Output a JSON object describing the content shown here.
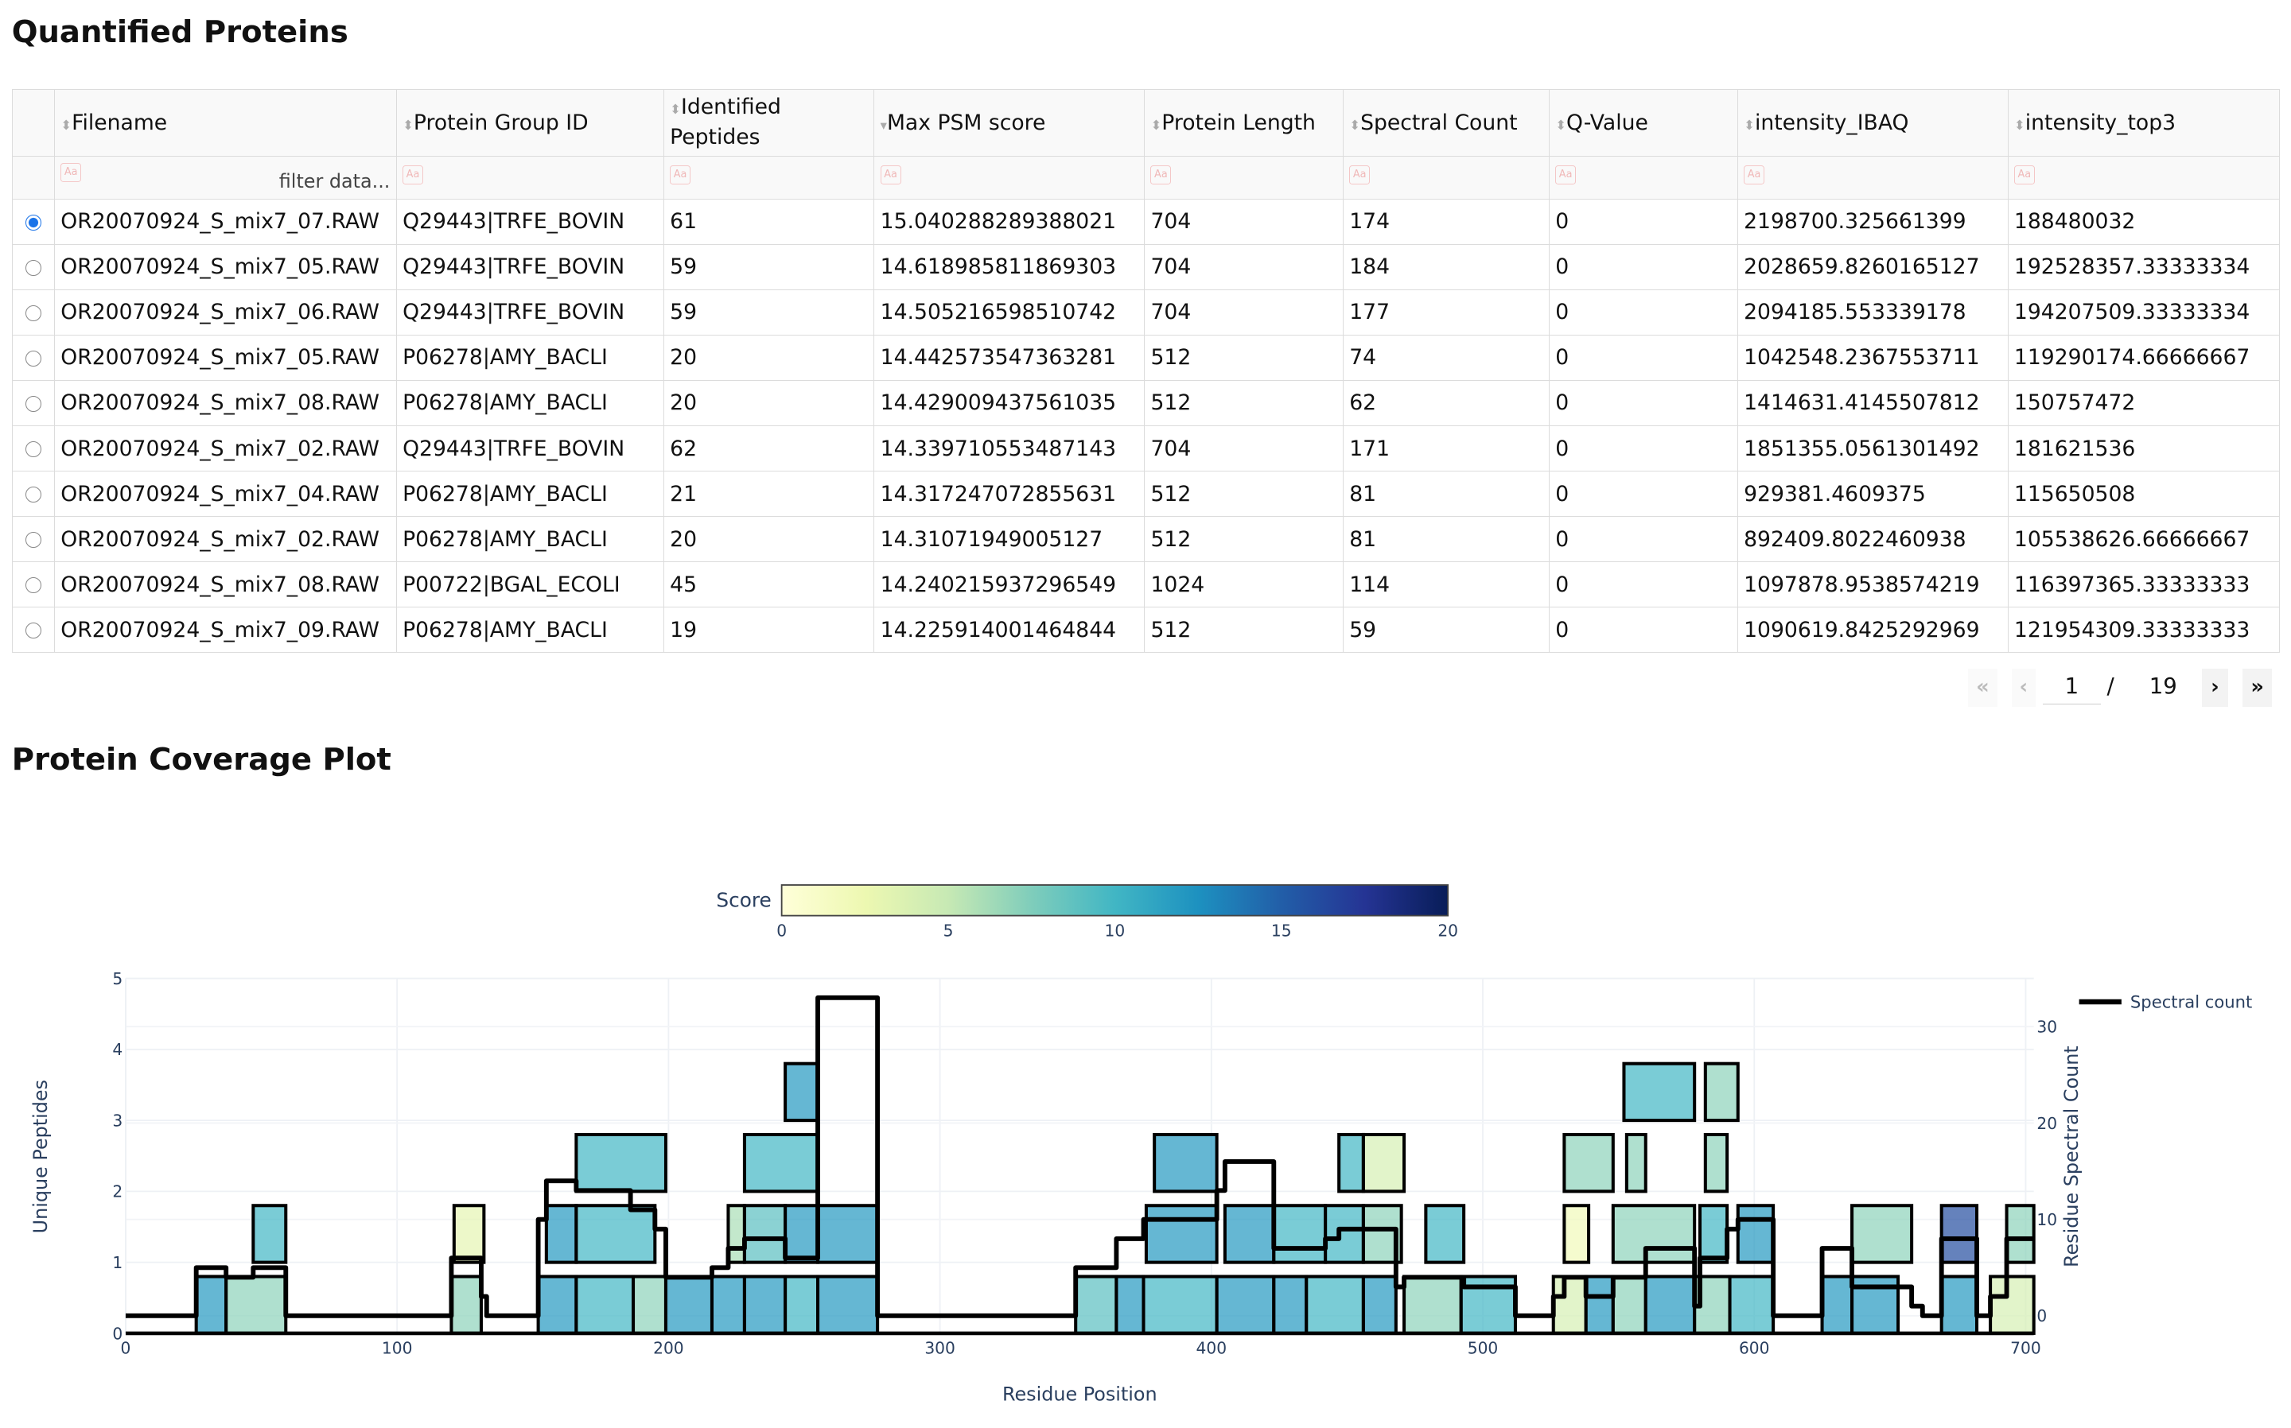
{
  "table_title": "Quantified Proteins",
  "columns": [
    "Filename",
    "Protein Group ID",
    "Identified Peptides",
    "Max PSM score",
    "Protein Length",
    "Spectral Count",
    "Q-Value",
    "intensity_IBAQ",
    "intensity_top3"
  ],
  "filter_placeholder": "filter data...",
  "filter_icon": "Aa",
  "rows": [
    [
      "OR20070924_S_mix7_07.RAW",
      "Q29443|TRFE_BOVIN",
      "61",
      "15.040288289388021",
      "704",
      "174",
      "0",
      "2198700.325661399",
      "188480032"
    ],
    [
      "OR20070924_S_mix7_05.RAW",
      "Q29443|TRFE_BOVIN",
      "59",
      "14.618985811869303",
      "704",
      "184",
      "0",
      "2028659.8260165127",
      "192528357.33333334"
    ],
    [
      "OR20070924_S_mix7_06.RAW",
      "Q29443|TRFE_BOVIN",
      "59",
      "14.505216598510742",
      "704",
      "177",
      "0",
      "2094185.553339178",
      "194207509.33333334"
    ],
    [
      "OR20070924_S_mix7_05.RAW",
      "P06278|AMY_BACLI",
      "20",
      "14.442573547363281",
      "512",
      "74",
      "0",
      "1042548.2367553711",
      "119290174.66666667"
    ],
    [
      "OR20070924_S_mix7_08.RAW",
      "P06278|AMY_BACLI",
      "20",
      "14.429009437561035",
      "512",
      "62",
      "0",
      "1414631.4145507812",
      "150757472"
    ],
    [
      "OR20070924_S_mix7_02.RAW",
      "Q29443|TRFE_BOVIN",
      "62",
      "14.339710553487143",
      "704",
      "171",
      "0",
      "1851355.0561301492",
      "181621536"
    ],
    [
      "OR20070924_S_mix7_04.RAW",
      "P06278|AMY_BACLI",
      "21",
      "14.317247072855631",
      "512",
      "81",
      "0",
      "929381.4609375",
      "115650508"
    ],
    [
      "OR20070924_S_mix7_02.RAW",
      "P06278|AMY_BACLI",
      "20",
      "14.31071949005127",
      "512",
      "81",
      "0",
      "892409.8022460938",
      "105538626.66666667"
    ],
    [
      "OR20070924_S_mix7_08.RAW",
      "P00722|BGAL_ECOLI",
      "45",
      "14.240215937296549",
      "1024",
      "114",
      "0",
      "1097878.9538574219",
      "116397365.33333333"
    ],
    [
      "OR20070924_S_mix7_09.RAW",
      "P06278|AMY_BACLI",
      "19",
      "14.225914001464844",
      "512",
      "59",
      "0",
      "1090619.8425292969",
      "121954309.33333333"
    ]
  ],
  "selected_row": 0,
  "pagination": {
    "first": "«",
    "prev": "‹",
    "current": "1",
    "sep": "/",
    "total": "19",
    "next": "›",
    "last": "»"
  },
  "plot_title": "Protein Coverage Plot",
  "chart_data": {
    "type": "coverage",
    "xlabel": "Residue Position",
    "ylabel": "Unique Peptides",
    "y2label": "Residue Spectral Count",
    "xlim": [
      0,
      703
    ],
    "ylim": [
      0,
      5
    ],
    "y2lim": [
      -1.8,
      35
    ],
    "xticks": [
      0,
      100,
      200,
      300,
      400,
      500,
      600,
      700
    ],
    "yticks": [
      0,
      1,
      2,
      3,
      4,
      5
    ],
    "y2ticks": [
      0,
      10,
      20,
      30
    ],
    "colorbar": {
      "title": "Score",
      "range": [
        0,
        20
      ],
      "ticks": [
        0,
        5,
        10,
        15,
        20
      ],
      "colorscale": [
        "#ffffd9",
        "#edf8b1",
        "#c7e9b4",
        "#7fcdbb",
        "#41b6c4",
        "#1d91c0",
        "#225ea8",
        "#253494",
        "#081d58"
      ]
    },
    "legend": {
      "name": "Spectral count",
      "position": "top-right"
    },
    "peptides": [
      [
        26,
        37,
        0,
        12
      ],
      [
        37,
        59,
        0,
        7
      ],
      [
        120,
        131,
        0,
        7
      ],
      [
        152,
        166,
        0,
        12
      ],
      [
        166,
        187,
        0,
        10
      ],
      [
        187,
        199,
        0,
        7
      ],
      [
        199,
        216,
        0,
        12
      ],
      [
        216,
        228,
        0,
        12
      ],
      [
        228,
        243,
        0,
        12
      ],
      [
        243,
        255,
        0,
        10
      ],
      [
        255,
        277,
        0,
        12
      ],
      [
        350,
        365,
        0,
        9
      ],
      [
        365,
        375,
        0,
        12
      ],
      [
        375,
        402,
        0,
        10
      ],
      [
        402,
        423,
        0,
        12
      ],
      [
        423,
        435,
        0,
        12
      ],
      [
        435,
        456,
        0,
        10
      ],
      [
        456,
        468,
        0,
        12
      ],
      [
        471,
        492,
        0,
        7
      ],
      [
        492,
        512,
        0,
        10
      ],
      [
        526,
        538,
        0,
        4
      ],
      [
        538,
        548,
        0,
        12
      ],
      [
        548,
        560,
        0,
        7
      ],
      [
        560,
        578,
        0,
        12
      ],
      [
        578,
        591,
        0,
        7
      ],
      [
        591,
        607,
        0,
        10
      ],
      [
        625,
        636,
        0,
        12
      ],
      [
        636,
        653,
        0,
        12
      ],
      [
        669,
        682,
        0,
        12
      ],
      [
        687,
        703,
        0,
        4
      ],
      [
        47,
        59,
        1,
        10
      ],
      [
        121,
        132,
        1,
        3
      ],
      [
        155,
        166,
        1,
        12
      ],
      [
        166,
        195,
        1,
        10
      ],
      [
        222,
        228,
        1,
        6
      ],
      [
        228,
        243,
        1,
        9
      ],
      [
        243,
        255,
        1,
        12
      ],
      [
        255,
        277,
        1,
        12
      ],
      [
        376,
        402,
        1,
        12
      ],
      [
        405,
        423,
        1,
        12
      ],
      [
        423,
        442,
        1,
        10
      ],
      [
        442,
        456,
        1,
        10
      ],
      [
        456,
        470,
        1,
        7
      ],
      [
        479,
        493,
        1,
        10
      ],
      [
        530,
        539,
        1,
        2
      ],
      [
        548,
        578,
        1,
        7
      ],
      [
        580,
        590,
        1,
        10
      ],
      [
        594,
        607,
        1,
        12
      ],
      [
        636,
        658,
        1,
        7
      ],
      [
        669,
        682,
        1,
        16
      ],
      [
        693,
        703,
        1,
        7
      ],
      [
        166,
        199,
        2,
        10
      ],
      [
        228,
        255,
        2,
        10
      ],
      [
        379,
        402,
        2,
        12
      ],
      [
        447,
        456,
        2,
        10
      ],
      [
        456,
        471,
        2,
        4
      ],
      [
        530,
        548,
        2,
        7
      ],
      [
        553,
        560,
        2,
        7
      ],
      [
        582,
        590,
        2,
        7
      ],
      [
        243,
        255,
        3,
        12
      ],
      [
        552,
        578,
        3,
        10
      ],
      [
        582,
        594,
        3,
        7
      ]
    ],
    "spectral_count": [
      [
        0,
        26,
        0
      ],
      [
        26,
        37,
        5
      ],
      [
        37,
        47,
        4
      ],
      [
        47,
        59,
        5
      ],
      [
        59,
        120,
        0
      ],
      [
        120,
        131,
        6
      ],
      [
        131,
        133,
        2
      ],
      [
        133,
        152,
        0
      ],
      [
        152,
        155,
        10
      ],
      [
        155,
        166,
        14
      ],
      [
        166,
        186,
        13
      ],
      [
        186,
        195,
        11
      ],
      [
        195,
        199,
        9
      ],
      [
        199,
        216,
        4
      ],
      [
        216,
        222,
        5
      ],
      [
        222,
        228,
        7
      ],
      [
        228,
        243,
        8
      ],
      [
        243,
        255,
        6
      ],
      [
        255,
        277,
        33
      ],
      [
        277,
        350,
        0
      ],
      [
        350,
        365,
        5
      ],
      [
        365,
        375,
        8
      ],
      [
        375,
        402,
        10
      ],
      [
        402,
        405,
        13
      ],
      [
        405,
        423,
        16
      ],
      [
        423,
        442,
        7
      ],
      [
        442,
        447,
        8
      ],
      [
        447,
        468,
        9
      ],
      [
        468,
        471,
        3
      ],
      [
        471,
        493,
        4
      ],
      [
        493,
        512,
        3
      ],
      [
        512,
        526,
        0
      ],
      [
        526,
        530,
        2
      ],
      [
        530,
        538,
        4
      ],
      [
        538,
        548,
        2
      ],
      [
        548,
        560,
        4
      ],
      [
        560,
        578,
        7
      ],
      [
        578,
        580,
        1
      ],
      [
        580,
        590,
        6
      ],
      [
        590,
        594,
        9
      ],
      [
        594,
        607,
        10
      ],
      [
        607,
        625,
        0
      ],
      [
        625,
        636,
        7
      ],
      [
        636,
        658,
        3
      ],
      [
        658,
        662,
        1
      ],
      [
        662,
        669,
        0
      ],
      [
        669,
        682,
        8
      ],
      [
        682,
        687,
        0
      ],
      [
        687,
        693,
        2
      ],
      [
        693,
        703,
        8
      ]
    ]
  }
}
